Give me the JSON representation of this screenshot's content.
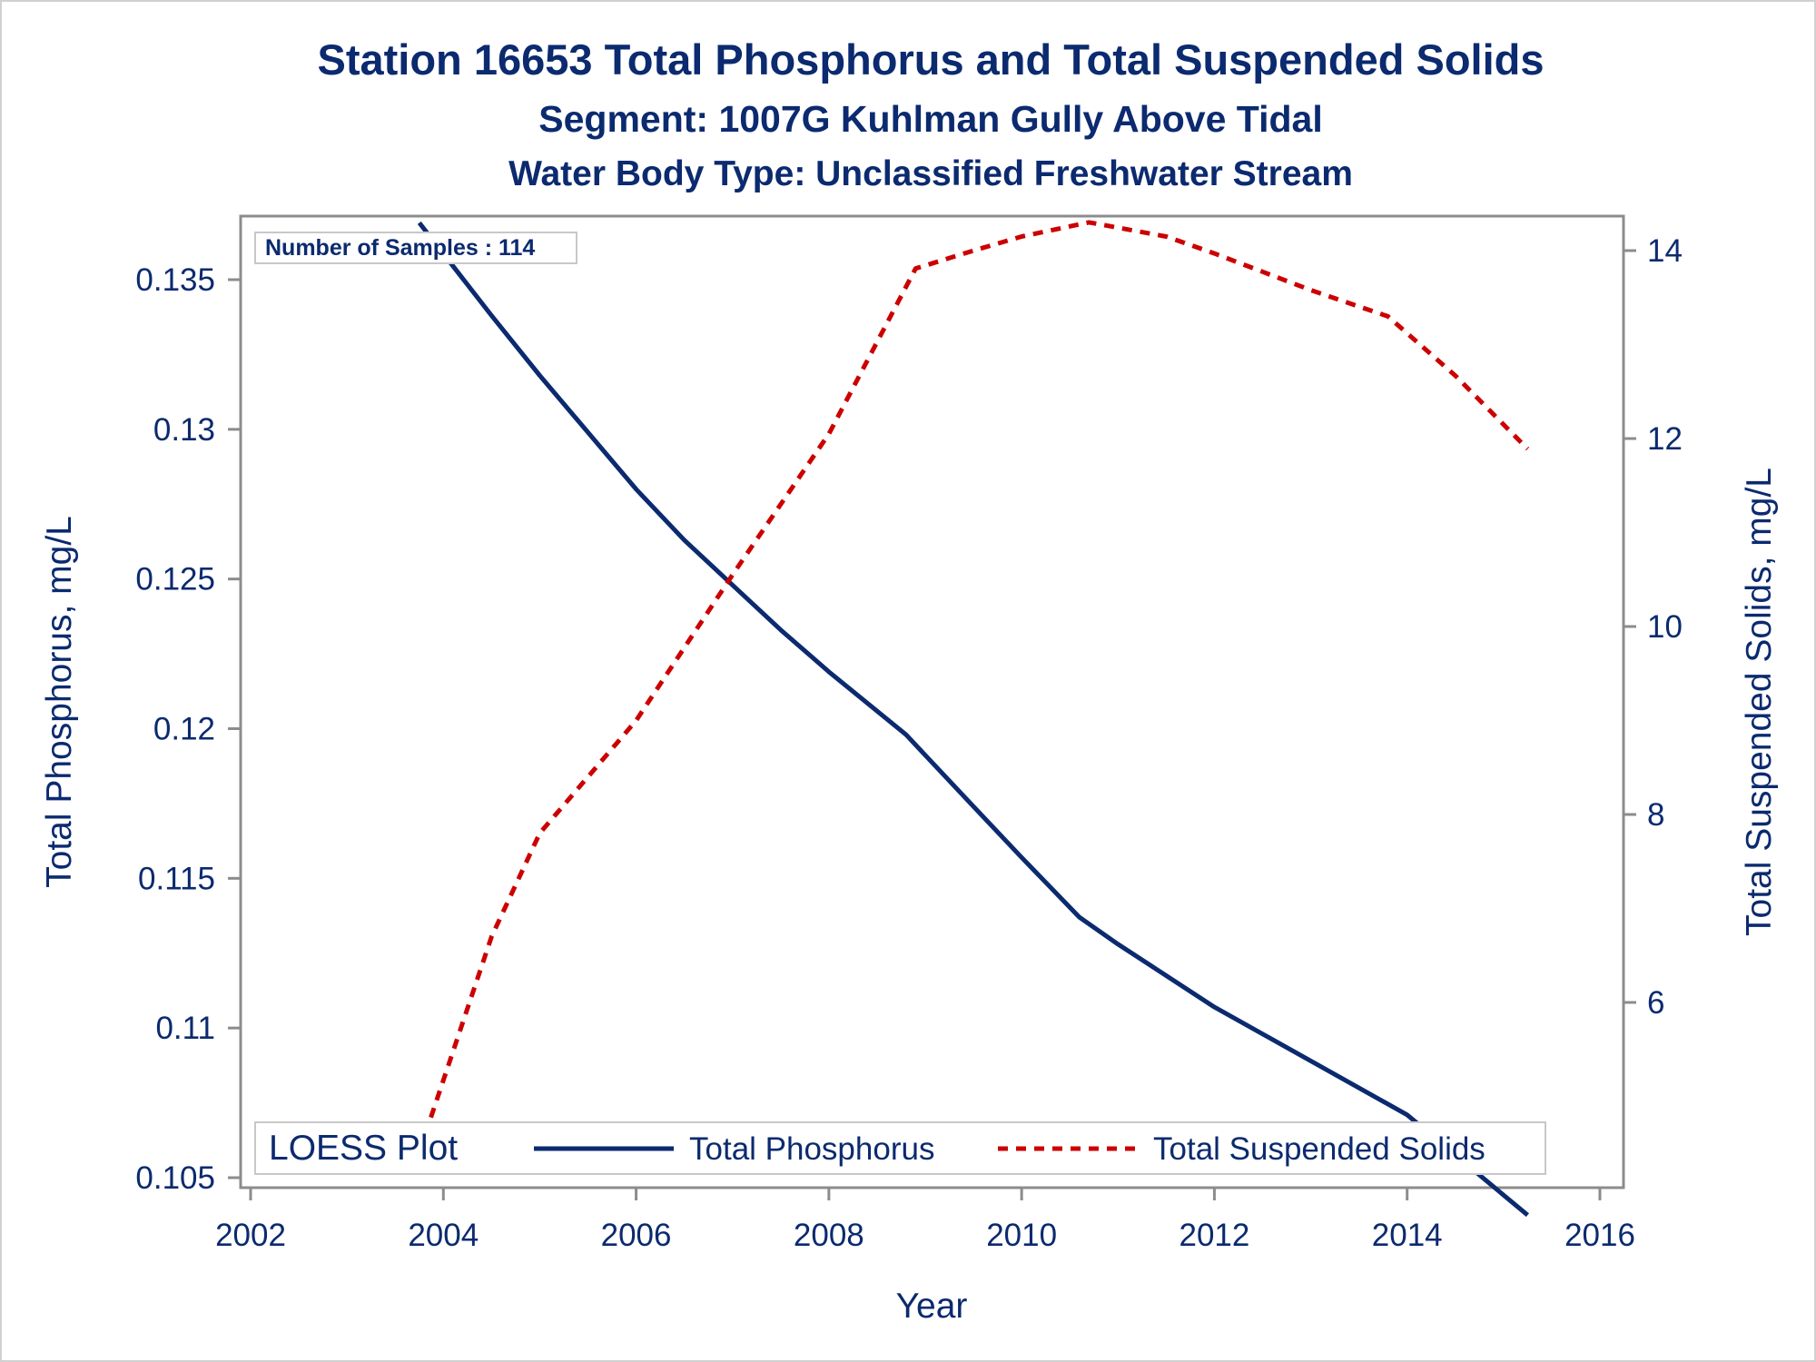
{
  "chart_data": {
    "type": "line",
    "title": "Station 16653  Total Phosphorus and Total Suspended Solids",
    "subtitle": "Segment: 1007G  Kuhlman Gully Above Tidal",
    "subtitle2": "Water Body Type: Unclassified Freshwater Stream",
    "xlabel": "Year",
    "ylabel_left": "Total Phosphorus, mg/L",
    "ylabel_right": "Total Suspended Solids, mg/L",
    "annotation": "Number of Samples : 114",
    "xlim": [
      2002,
      2016
    ],
    "ylim_left": [
      0.1045,
      0.1371
    ],
    "ylim_right": [
      4.41,
      14.31
    ],
    "x_ticks": [
      "2002",
      "2004",
      "2006",
      "2008",
      "2010",
      "2012",
      "2014",
      "2016"
    ],
    "y_ticks_left": [
      "0.105",
      "0.11",
      "0.115",
      "0.12",
      "0.125",
      "0.13",
      "0.135"
    ],
    "y_ticks_right": [
      "6",
      "8",
      "10",
      "12",
      "14"
    ],
    "grid": false,
    "legend": {
      "title": "LOESS Plot",
      "position": "bottom",
      "entries": [
        "Total Phosphorus",
        "Total Suspended Solids"
      ]
    },
    "colors": {
      "phosphorus": "#0b2a6f",
      "solids": "#cc0000",
      "text": "#0b2a6f",
      "axis": "#8c8c8c"
    },
    "series": [
      {
        "name": "Total Phosphorus",
        "axis": "left",
        "style": "solid",
        "x": [
          2003.75,
          2004.5,
          2005.0,
          2006.0,
          2006.5,
          2007.0,
          2007.5,
          2008.0,
          2008.8,
          2009.5,
          2010.0,
          2010.6,
          2011.0,
          2012.0,
          2013.0,
          2014.0,
          2015.25
        ],
        "y": [
          0.1369,
          0.1338,
          0.1318,
          0.128,
          0.1263,
          0.1248,
          0.1233,
          0.1219,
          0.1198,
          0.1174,
          0.1157,
          0.1137,
          0.1128,
          0.1107,
          0.1089,
          0.1071,
          0.10375
        ]
      },
      {
        "name": "Total Suspended Solids",
        "axis": "right",
        "style": "dashed",
        "x": [
          2003.75,
          2004.5,
          2005.0,
          2006.0,
          2007.0,
          2008.0,
          2008.9,
          2009.5,
          2010.0,
          2010.7,
          2011.5,
          2012.0,
          2013.0,
          2013.8,
          2014.5,
          2015.25
        ],
        "y": [
          4.41,
          6.7,
          7.8,
          9.0,
          10.55,
          12.05,
          13.81,
          14.0,
          14.15,
          14.3,
          14.15,
          13.97,
          13.58,
          13.3,
          12.67,
          11.89
        ]
      }
    ]
  }
}
